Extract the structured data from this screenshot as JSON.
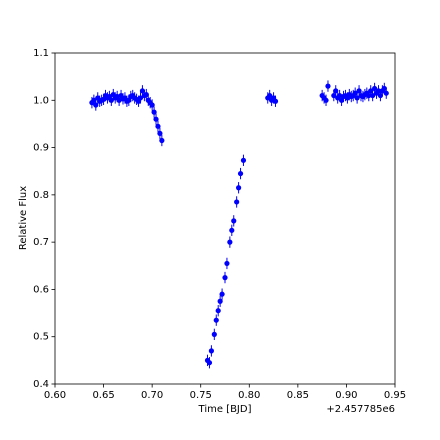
{
  "chart_data": {
    "type": "errorbar-scatter",
    "xlabel": "Time [BJD]",
    "ylabel": "Relative Flux",
    "x_offset_label": "+2.457785e6",
    "xlim": [
      0.6,
      0.95
    ],
    "ylim": [
      0.4,
      1.1
    ],
    "xticks": [
      {
        "value": 0.6,
        "label": "0.60"
      },
      {
        "value": 0.65,
        "label": "0.65"
      },
      {
        "value": 0.7,
        "label": "0.70"
      },
      {
        "value": 0.75,
        "label": "0.75"
      },
      {
        "value": 0.8,
        "label": "0.80"
      },
      {
        "value": 0.85,
        "label": "0.85"
      },
      {
        "value": 0.9,
        "label": "0.90"
      },
      {
        "value": 0.95,
        "label": "0.95"
      }
    ],
    "yticks": [
      0.4,
      0.5,
      0.6,
      0.7,
      0.8,
      0.9,
      {
        "value": 1,
        "label": "1.0"
      },
      1.1
    ],
    "yerr": 0.012,
    "series": [
      {
        "color": "#0000ff",
        "x": [
          0.638,
          0.64,
          0.642,
          0.644,
          0.646,
          0.648,
          0.65,
          0.652,
          0.654,
          0.656,
          0.658,
          0.66,
          0.662,
          0.664,
          0.666,
          0.668,
          0.67,
          0.672,
          0.674,
          0.676,
          0.678,
          0.68,
          0.682,
          0.684,
          0.686,
          0.688,
          0.69,
          0.692,
          0.694,
          0.696,
          0.698,
          0.7,
          0.702,
          0.704,
          0.706,
          0.708,
          0.71,
          0.757,
          0.759,
          0.761,
          0.764,
          0.766,
          0.768,
          0.77,
          0.772,
          0.775,
          0.777,
          0.78,
          0.782,
          0.784,
          0.787,
          0.789,
          0.791,
          0.794,
          0.819,
          0.821,
          0.823,
          0.825,
          0.827,
          0.875,
          0.877,
          0.879,
          0.881,
          0.887,
          0.889,
          0.891,
          0.893,
          0.895,
          0.897,
          0.899,
          0.901,
          0.903,
          0.905,
          0.907,
          0.909,
          0.911,
          0.913,
          0.915,
          0.917,
          0.919,
          0.921,
          0.923,
          0.925,
          0.927,
          0.929,
          0.931,
          0.933,
          0.935,
          0.937,
          0.939,
          0.941
        ],
        "values": [
          0.995,
          1.0,
          0.99,
          1.005,
          0.998,
          1.0,
          1.002,
          1.01,
          1.005,
          1.008,
          1.0,
          1.012,
          1.005,
          1.008,
          1.0,
          1.01,
          1.003,
          1.005,
          0.998,
          1.0,
          1.008,
          1.01,
          1.005,
          1.002,
          0.998,
          1.005,
          1.02,
          1.01,
          1.012,
          1.0,
          0.995,
          0.99,
          0.975,
          0.96,
          0.945,
          0.93,
          0.915,
          0.45,
          0.445,
          0.47,
          0.505,
          0.535,
          0.555,
          0.575,
          0.59,
          0.625,
          0.655,
          0.7,
          0.725,
          0.745,
          0.785,
          0.815,
          0.845,
          0.873,
          1.005,
          1.01,
          1.0,
          1.005,
          0.998,
          1.01,
          1.005,
          1.0,
          1.03,
          1.01,
          1.02,
          1.005,
          1.01,
          1.0,
          1.008,
          1.01,
          1.005,
          1.012,
          1.008,
          1.01,
          1.015,
          1.005,
          1.02,
          1.01,
          1.008,
          1.012,
          1.015,
          1.01,
          1.02,
          1.01,
          1.025,
          1.015,
          1.02,
          1.01,
          1.02,
          1.025,
          1.015
        ]
      }
    ]
  }
}
